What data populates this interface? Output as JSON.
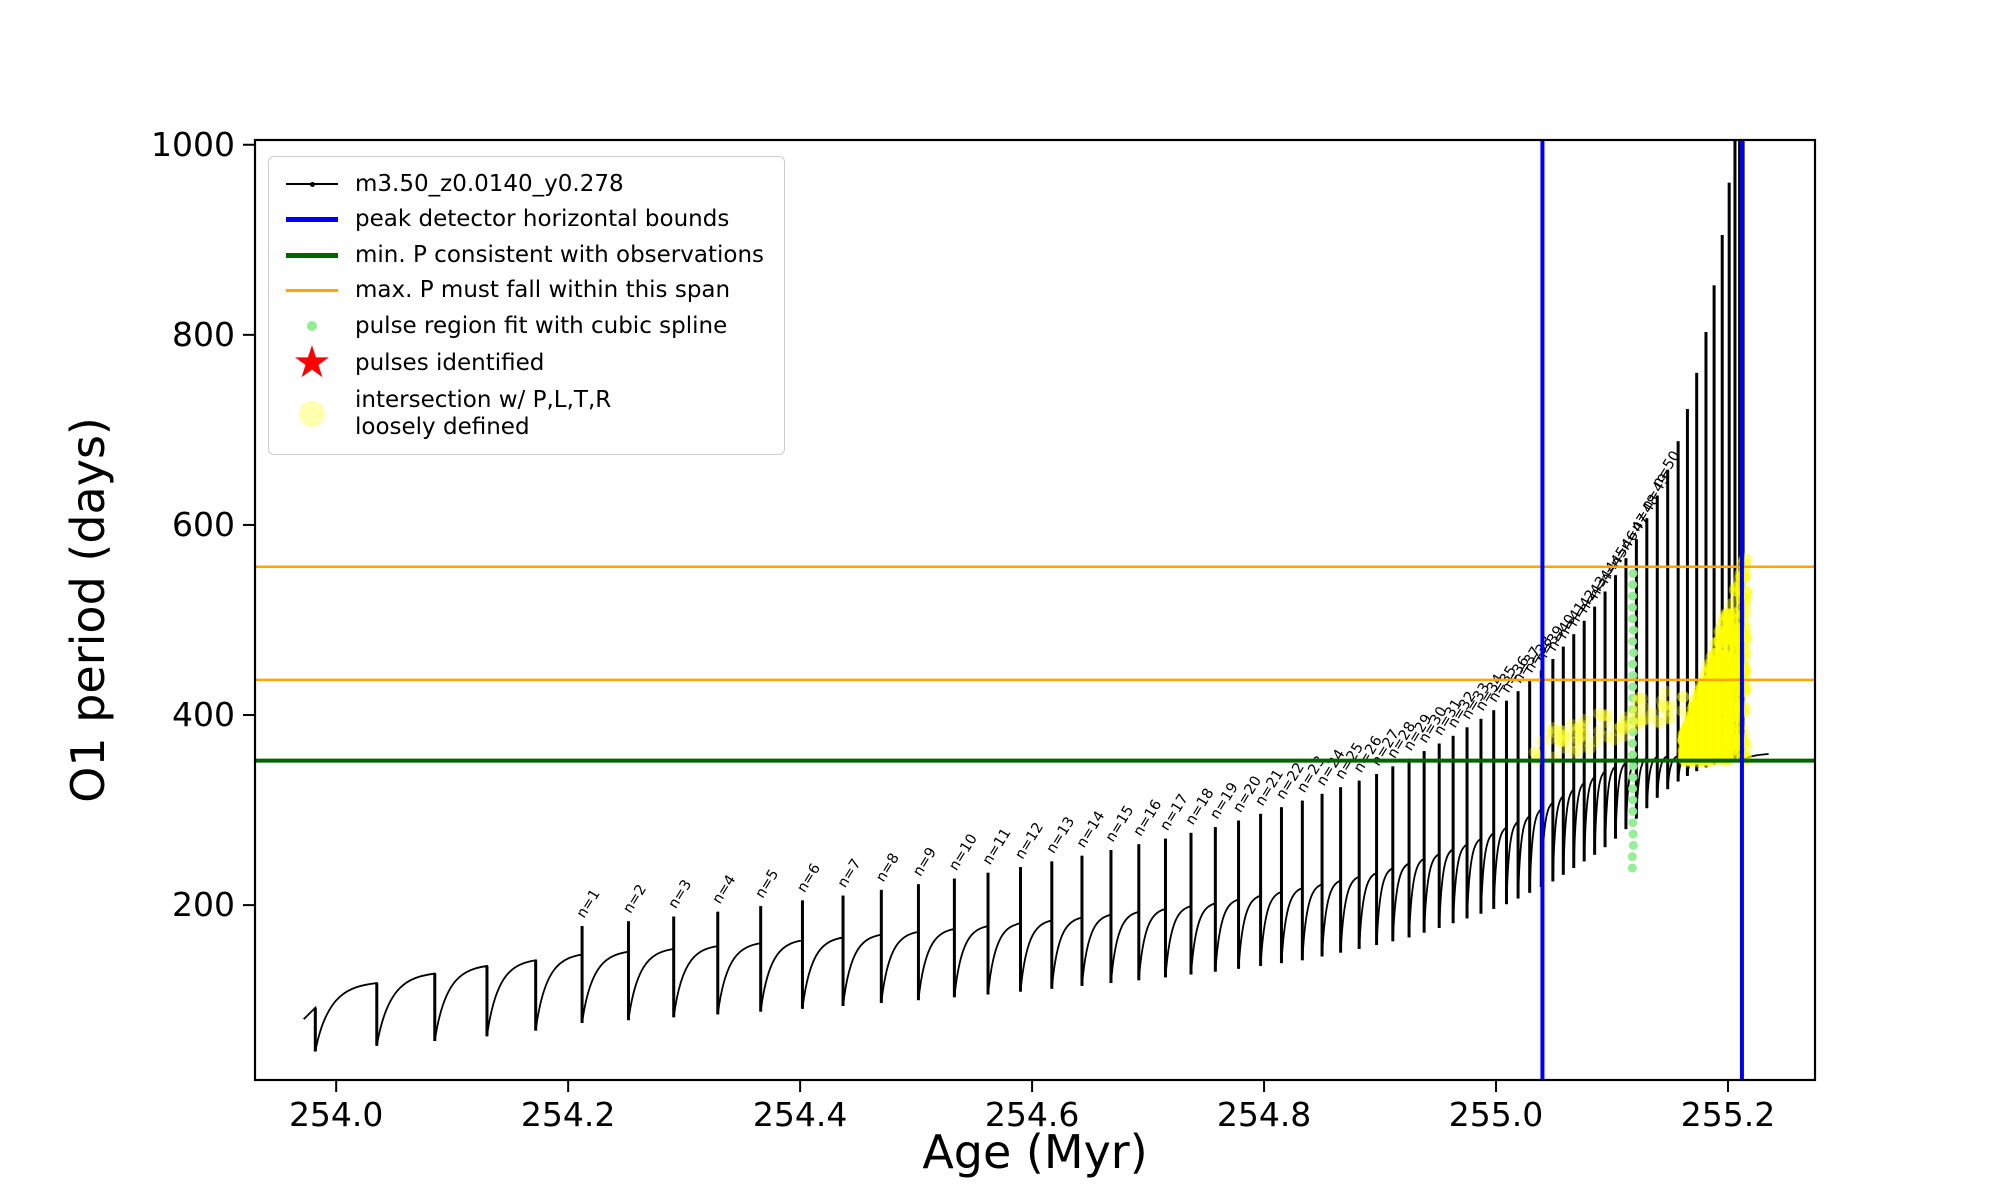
{
  "figure": {
    "background": "#ffffff"
  },
  "legend": {
    "entries": [
      {
        "marker": "line-dot",
        "color": "#000000",
        "label": "m3.50_z0.0140_y0.278"
      },
      {
        "marker": "thick-line",
        "color": "#0000ee",
        "label": "peak detector horizontal bounds"
      },
      {
        "marker": "thick-line",
        "color": "#006400",
        "label": "min. P consistent with observations"
      },
      {
        "marker": "thin-line",
        "color": "#ffa500",
        "label": "max. P must fall within this span"
      },
      {
        "marker": "dot-small",
        "color": "#90ee90",
        "label": "pulse region fit with cubic spline"
      },
      {
        "marker": "star",
        "color": "#ff0000",
        "label": "pulses identified"
      },
      {
        "marker": "dot-large",
        "color": "#ffffb0",
        "label": "intersection w/ P,L,T,R\nloosely defined"
      }
    ]
  },
  "chart_data": {
    "type": "line",
    "title": "",
    "xlabel": "Age (Myr)",
    "ylabel": "O1 period (days)",
    "series_label": "m3.50_z0.0140_y0.278",
    "xlim": [
      253.93,
      255.275
    ],
    "ylim": [
      16,
      1005
    ],
    "xticks": [
      254.0,
      254.2,
      254.4,
      254.6,
      254.8,
      255.0,
      255.2
    ],
    "xtick_labels": [
      "254.0",
      "254.2",
      "254.4",
      "254.6",
      "254.8",
      "255.0",
      "255.2"
    ],
    "yticks": [
      200,
      400,
      600,
      800,
      1000
    ],
    "ytick_labels": [
      "200",
      "400",
      "600",
      "800",
      "1000"
    ],
    "grid": false,
    "legend_position": "upper left",
    "line_color": "#000000",
    "hlines": [
      {
        "y": 352,
        "color": "#006400",
        "width": 4,
        "role": "min-P-consistent-with-observations"
      },
      {
        "y": 437,
        "color": "#ffa500",
        "width": 2.5,
        "role": "max-P-span-lower"
      },
      {
        "y": 556,
        "color": "#ffa500",
        "width": 2.5,
        "role": "max-P-span-upper"
      }
    ],
    "vlines": [
      {
        "x": 255.04,
        "color": "#0000ee",
        "width": 4,
        "role": "peak-detector-left-bound"
      },
      {
        "x": 255.212,
        "color": "#0000ee",
        "width": 4,
        "role": "peak-detector-right-bound"
      }
    ],
    "pulses": [
      {
        "n": null,
        "x": 253.982,
        "top": 92,
        "base": 92,
        "dip": 46
      },
      {
        "n": null,
        "x": 254.035,
        "top": 118,
        "base": 118,
        "dip": 52
      },
      {
        "n": null,
        "x": 254.085,
        "top": 128,
        "base": 128,
        "dip": 57
      },
      {
        "n": null,
        "x": 254.13,
        "top": 136,
        "base": 136,
        "dip": 62
      },
      {
        "n": null,
        "x": 254.172,
        "top": 142,
        "base": 142,
        "dip": 68
      },
      {
        "n": 1,
        "x": 254.212,
        "top": 178,
        "base": 148,
        "dip": 76
      },
      {
        "n": 2,
        "x": 254.252,
        "top": 183,
        "base": 151,
        "dip": 79
      },
      {
        "n": 3,
        "x": 254.291,
        "top": 188,
        "base": 154,
        "dip": 82
      },
      {
        "n": 4,
        "x": 254.329,
        "top": 193,
        "base": 157,
        "dip": 85
      },
      {
        "n": 5,
        "x": 254.366,
        "top": 199,
        "base": 160,
        "dip": 88
      },
      {
        "n": 6,
        "x": 254.402,
        "top": 205,
        "base": 163,
        "dip": 91
      },
      {
        "n": 7,
        "x": 254.437,
        "top": 210,
        "base": 166,
        "dip": 94
      },
      {
        "n": 8,
        "x": 254.47,
        "top": 216,
        "base": 169,
        "dip": 97
      },
      {
        "n": 9,
        "x": 254.502,
        "top": 222,
        "base": 172,
        "dip": 100
      },
      {
        "n": 10,
        "x": 254.533,
        "top": 228,
        "base": 175,
        "dip": 103
      },
      {
        "n": 11,
        "x": 254.562,
        "top": 234,
        "base": 178,
        "dip": 106
      },
      {
        "n": 12,
        "x": 254.59,
        "top": 240,
        "base": 181,
        "dip": 109
      },
      {
        "n": 13,
        "x": 254.617,
        "top": 246,
        "base": 184,
        "dip": 112
      },
      {
        "n": 14,
        "x": 254.643,
        "top": 252,
        "base": 187,
        "dip": 115
      },
      {
        "n": 15,
        "x": 254.668,
        "top": 258,
        "base": 190,
        "dip": 118
      },
      {
        "n": 16,
        "x": 254.692,
        "top": 264,
        "base": 193,
        "dip": 121
      },
      {
        "n": 17,
        "x": 254.715,
        "top": 270,
        "base": 196,
        "dip": 124
      },
      {
        "n": 18,
        "x": 254.737,
        "top": 276,
        "base": 199,
        "dip": 127
      },
      {
        "n": 19,
        "x": 254.758,
        "top": 282,
        "base": 202,
        "dip": 130
      },
      {
        "n": 20,
        "x": 254.778,
        "top": 289,
        "base": 206,
        "dip": 133
      },
      {
        "n": 21,
        "x": 254.797,
        "top": 296,
        "base": 210,
        "dip": 136
      },
      {
        "n": 22,
        "x": 254.815,
        "top": 303,
        "base": 214,
        "dip": 139
      },
      {
        "n": 23,
        "x": 254.833,
        "top": 310,
        "base": 218,
        "dip": 142
      },
      {
        "n": 24,
        "x": 254.85,
        "top": 317,
        "base": 222,
        "dip": 146
      },
      {
        "n": 25,
        "x": 254.866,
        "top": 324,
        "base": 226,
        "dip": 150
      },
      {
        "n": 26,
        "x": 254.882,
        "top": 331,
        "base": 230,
        "dip": 154
      },
      {
        "n": 27,
        "x": 254.897,
        "top": 338,
        "base": 234,
        "dip": 158
      },
      {
        "n": 28,
        "x": 254.911,
        "top": 346,
        "base": 239,
        "dip": 162
      },
      {
        "n": 29,
        "x": 254.925,
        "top": 354,
        "base": 244,
        "dip": 166
      },
      {
        "n": 30,
        "x": 254.938,
        "top": 362,
        "base": 249,
        "dip": 171
      },
      {
        "n": 31,
        "x": 254.951,
        "top": 370,
        "base": 254,
        "dip": 176
      },
      {
        "n": 32,
        "x": 254.963,
        "top": 378,
        "base": 259,
        "dip": 181
      },
      {
        "n": 33,
        "x": 254.975,
        "top": 387,
        "base": 264,
        "dip": 186
      },
      {
        "n": 34,
        "x": 254.987,
        "top": 396,
        "base": 270,
        "dip": 191
      },
      {
        "n": 35,
        "x": 254.998,
        "top": 405,
        "base": 276,
        "dip": 196
      },
      {
        "n": 36,
        "x": 255.009,
        "top": 415,
        "base": 282,
        "dip": 201
      },
      {
        "n": 37,
        "x": 255.019,
        "top": 425,
        "base": 288,
        "dip": 207
      },
      {
        "n": 38,
        "x": 255.029,
        "top": 436,
        "base": 294,
        "dip": 213
      },
      {
        "n": 39,
        "x": 255.039,
        "top": 447,
        "base": 301,
        "dip": 219
      },
      {
        "n": 40,
        "x": 255.049,
        "top": 459,
        "base": 308,
        "dip": 225
      },
      {
        "n": 41,
        "x": 255.058,
        "top": 472,
        "base": 315,
        "dip": 232
      },
      {
        "n": 42,
        "x": 255.067,
        "top": 485,
        "base": 322,
        "dip": 239
      },
      {
        "n": 43,
        "x": 255.076,
        "top": 499,
        "base": 329,
        "dip": 246
      },
      {
        "n": 44,
        "x": 255.085,
        "top": 514,
        "base": 335,
        "dip": 253
      },
      {
        "n": 45,
        "x": 255.094,
        "top": 530,
        "base": 341,
        "dip": 261
      },
      {
        "n": 46,
        "x": 255.103,
        "top": 547,
        "base": 346,
        "dip": 270
      },
      {
        "n": 47,
        "x": 255.112,
        "top": 565,
        "base": 350,
        "dip": 280
      },
      {
        "n": 48,
        "x": 255.121,
        "top": 585,
        "base": 353,
        "dip": 291
      },
      {
        "n": 49,
        "x": 255.13,
        "top": 607,
        "base": 355,
        "dip": 302
      },
      {
        "n": 50,
        "x": 255.139,
        "top": 631,
        "base": 356,
        "dip": 313
      },
      {
        "n": null,
        "x": 255.148,
        "top": 658,
        "base": 357,
        "dip": 322
      },
      {
        "n": null,
        "x": 255.157,
        "top": 688,
        "base": 357,
        "dip": 330
      },
      {
        "n": null,
        "x": 255.165,
        "top": 722,
        "base": 358,
        "dip": 336
      },
      {
        "n": null,
        "x": 255.173,
        "top": 760,
        "base": 358,
        "dip": 341
      },
      {
        "n": null,
        "x": 255.181,
        "top": 803,
        "base": 359,
        "dip": 345
      },
      {
        "n": null,
        "x": 255.188,
        "top": 852,
        "base": 359,
        "dip": 348
      },
      {
        "n": null,
        "x": 255.195,
        "top": 905,
        "base": 360,
        "dip": 350
      },
      {
        "n": null,
        "x": 255.201,
        "top": 960,
        "base": 360,
        "dip": 351
      },
      {
        "n": null,
        "x": 255.206,
        "top": 1005,
        "base": 360,
        "dip": 352
      },
      {
        "n": null,
        "x": 255.21,
        "top": 1005,
        "base": 360,
        "dip": 352
      },
      {
        "n": null,
        "x": 255.213,
        "top": 1005,
        "base": 360,
        "dip": 353
      }
    ],
    "green_spline_column": {
      "x": 255.118,
      "y_min": 239,
      "y_max": 549,
      "count": 27,
      "color": "#90ee90"
    },
    "yellow_band": {
      "x_min": 255.033,
      "x_max": 255.162,
      "y_start": 362,
      "y_rise": 55,
      "jitter": 36,
      "count": 80,
      "color": "#ffff33",
      "opacity": 0.35
    },
    "yellow_mass": {
      "x_min": 255.162,
      "x_max": 255.215,
      "y_min": 352,
      "y_top_start": 378,
      "y_top_end": 565,
      "count": 550,
      "color": "#ffff00",
      "opacity": 0.45
    }
  }
}
